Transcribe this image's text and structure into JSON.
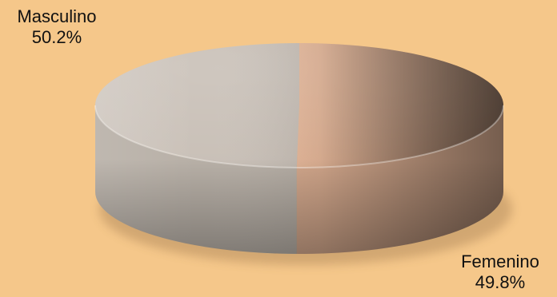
{
  "chart_data": {
    "type": "pie",
    "title": "",
    "slices": [
      {
        "label": "Masculino",
        "value": 50.2,
        "value_label": "50.2%",
        "color": "#E9B99A"
      },
      {
        "label": "Femenino",
        "value": 49.8,
        "value_label": "49.8%",
        "color": "#C8BFB6"
      }
    ],
    "style": "3d-cylinder",
    "legend": "none"
  }
}
